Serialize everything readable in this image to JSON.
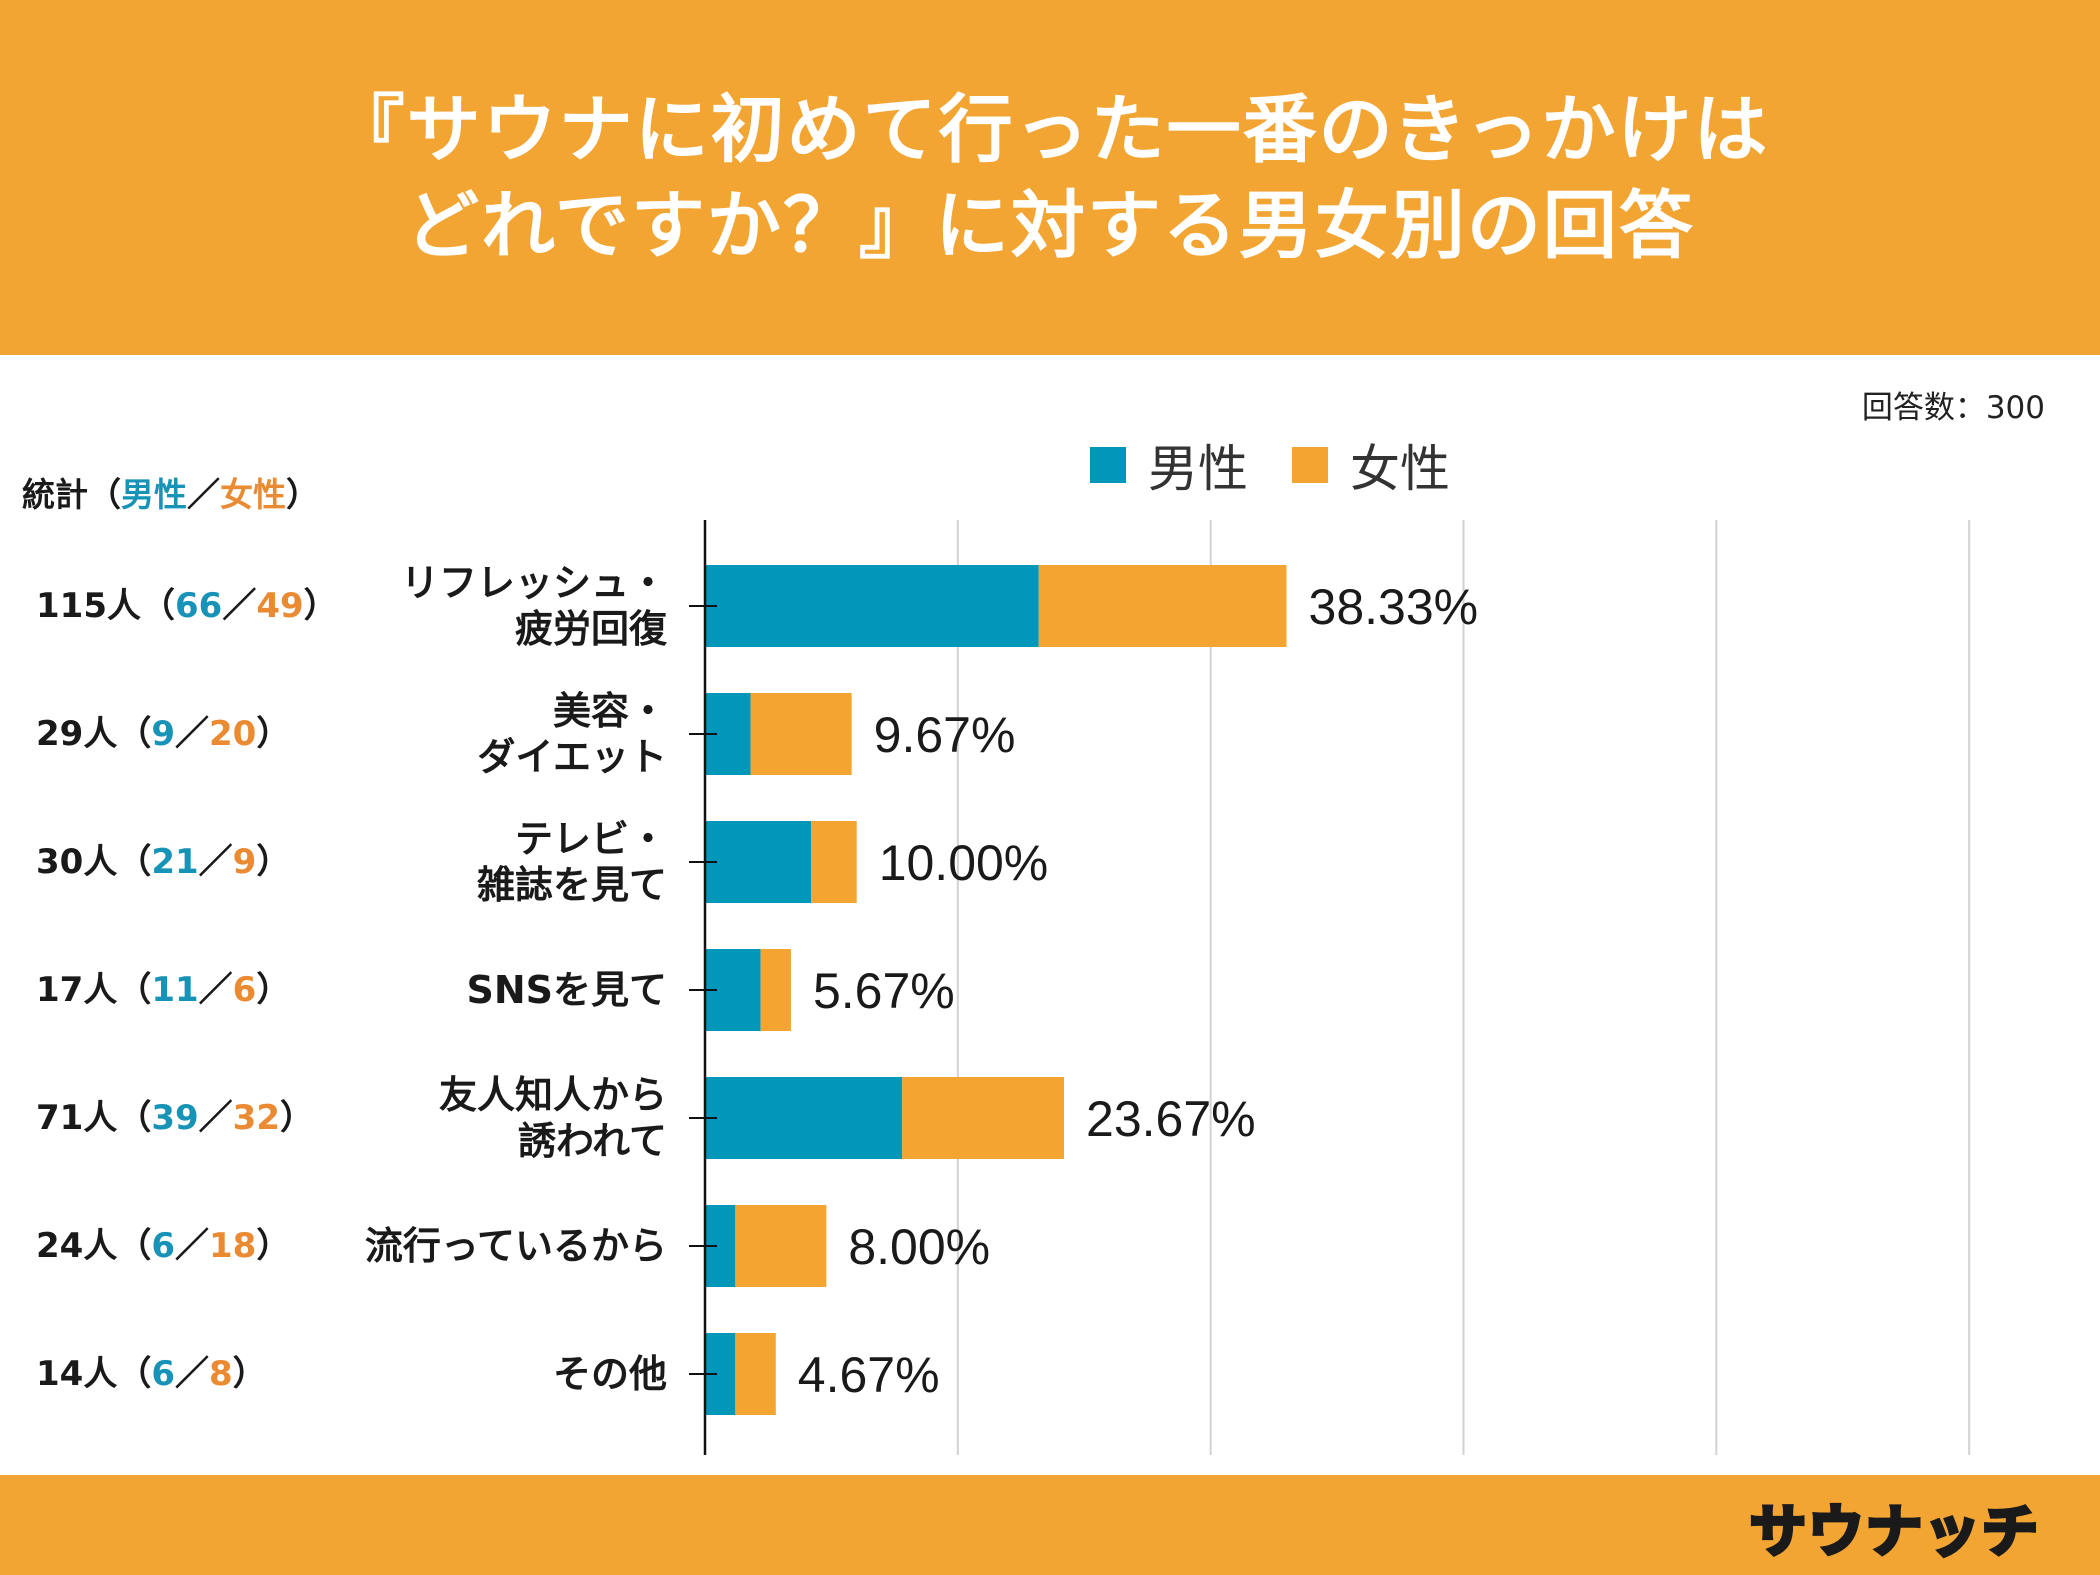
{
  "header": {
    "title_line1": "『サウナに初めて行った一番のきっかけは",
    "title_line2": "どれですか？』に対する男女別の回答"
  },
  "responses_label": "回答数：300",
  "stats_header": {
    "prefix": "統計（",
    "male": "男性",
    "sep": "／",
    "female": "女性",
    "suffix": "）"
  },
  "legend": {
    "male": "男性",
    "female": "女性"
  },
  "colors": {
    "male": "#0097bb",
    "female": "#f4a431",
    "header_bg": "#f2a533"
  },
  "chart_data": {
    "type": "bar",
    "orientation": "horizontal",
    "stacked": true,
    "total_respondents": 300,
    "categories": [
      "リフレッシュ・疲労回復",
      "美容・ダイエット",
      "テレビ・雑誌を見て",
      "SNSを見て",
      "友人知人から誘われて",
      "流行っているから",
      "その他"
    ],
    "category_lines": [
      [
        "リフレッシュ・",
        "疲労回復"
      ],
      [
        "美容・",
        "ダイエット"
      ],
      [
        "テレビ・",
        "雑誌を見て"
      ],
      [
        "SNSを見て"
      ],
      [
        "友人知人から",
        "誘われて"
      ],
      [
        "流行っているから"
      ],
      [
        "その他"
      ]
    ],
    "series": [
      {
        "name": "男性",
        "values": [
          66,
          9,
          21,
          11,
          39,
          6,
          6
        ]
      },
      {
        "name": "女性",
        "values": [
          49,
          20,
          9,
          6,
          32,
          18,
          8
        ]
      }
    ],
    "totals": [
      115,
      29,
      30,
      17,
      71,
      24,
      14
    ],
    "percent_labels": [
      "38.33%",
      "9.67%",
      "10.00%",
      "5.67%",
      "23.67%",
      "8.00%",
      "4.67%"
    ],
    "grid": true,
    "legend_position": "top"
  },
  "stats": [
    {
      "total": "115人",
      "male": "66",
      "female": "49"
    },
    {
      "total": "29人",
      "male": "9",
      "female": "20"
    },
    {
      "total": "30人",
      "male": "21",
      "female": "9"
    },
    {
      "total": "17人",
      "male": "11",
      "female": "6"
    },
    {
      "total": "71人",
      "male": "39",
      "female": "32"
    },
    {
      "total": "24人",
      "male": "6",
      "female": "18"
    },
    {
      "total": "14人",
      "male": "6",
      "female": "8"
    }
  ],
  "brand": "サウナッチ"
}
